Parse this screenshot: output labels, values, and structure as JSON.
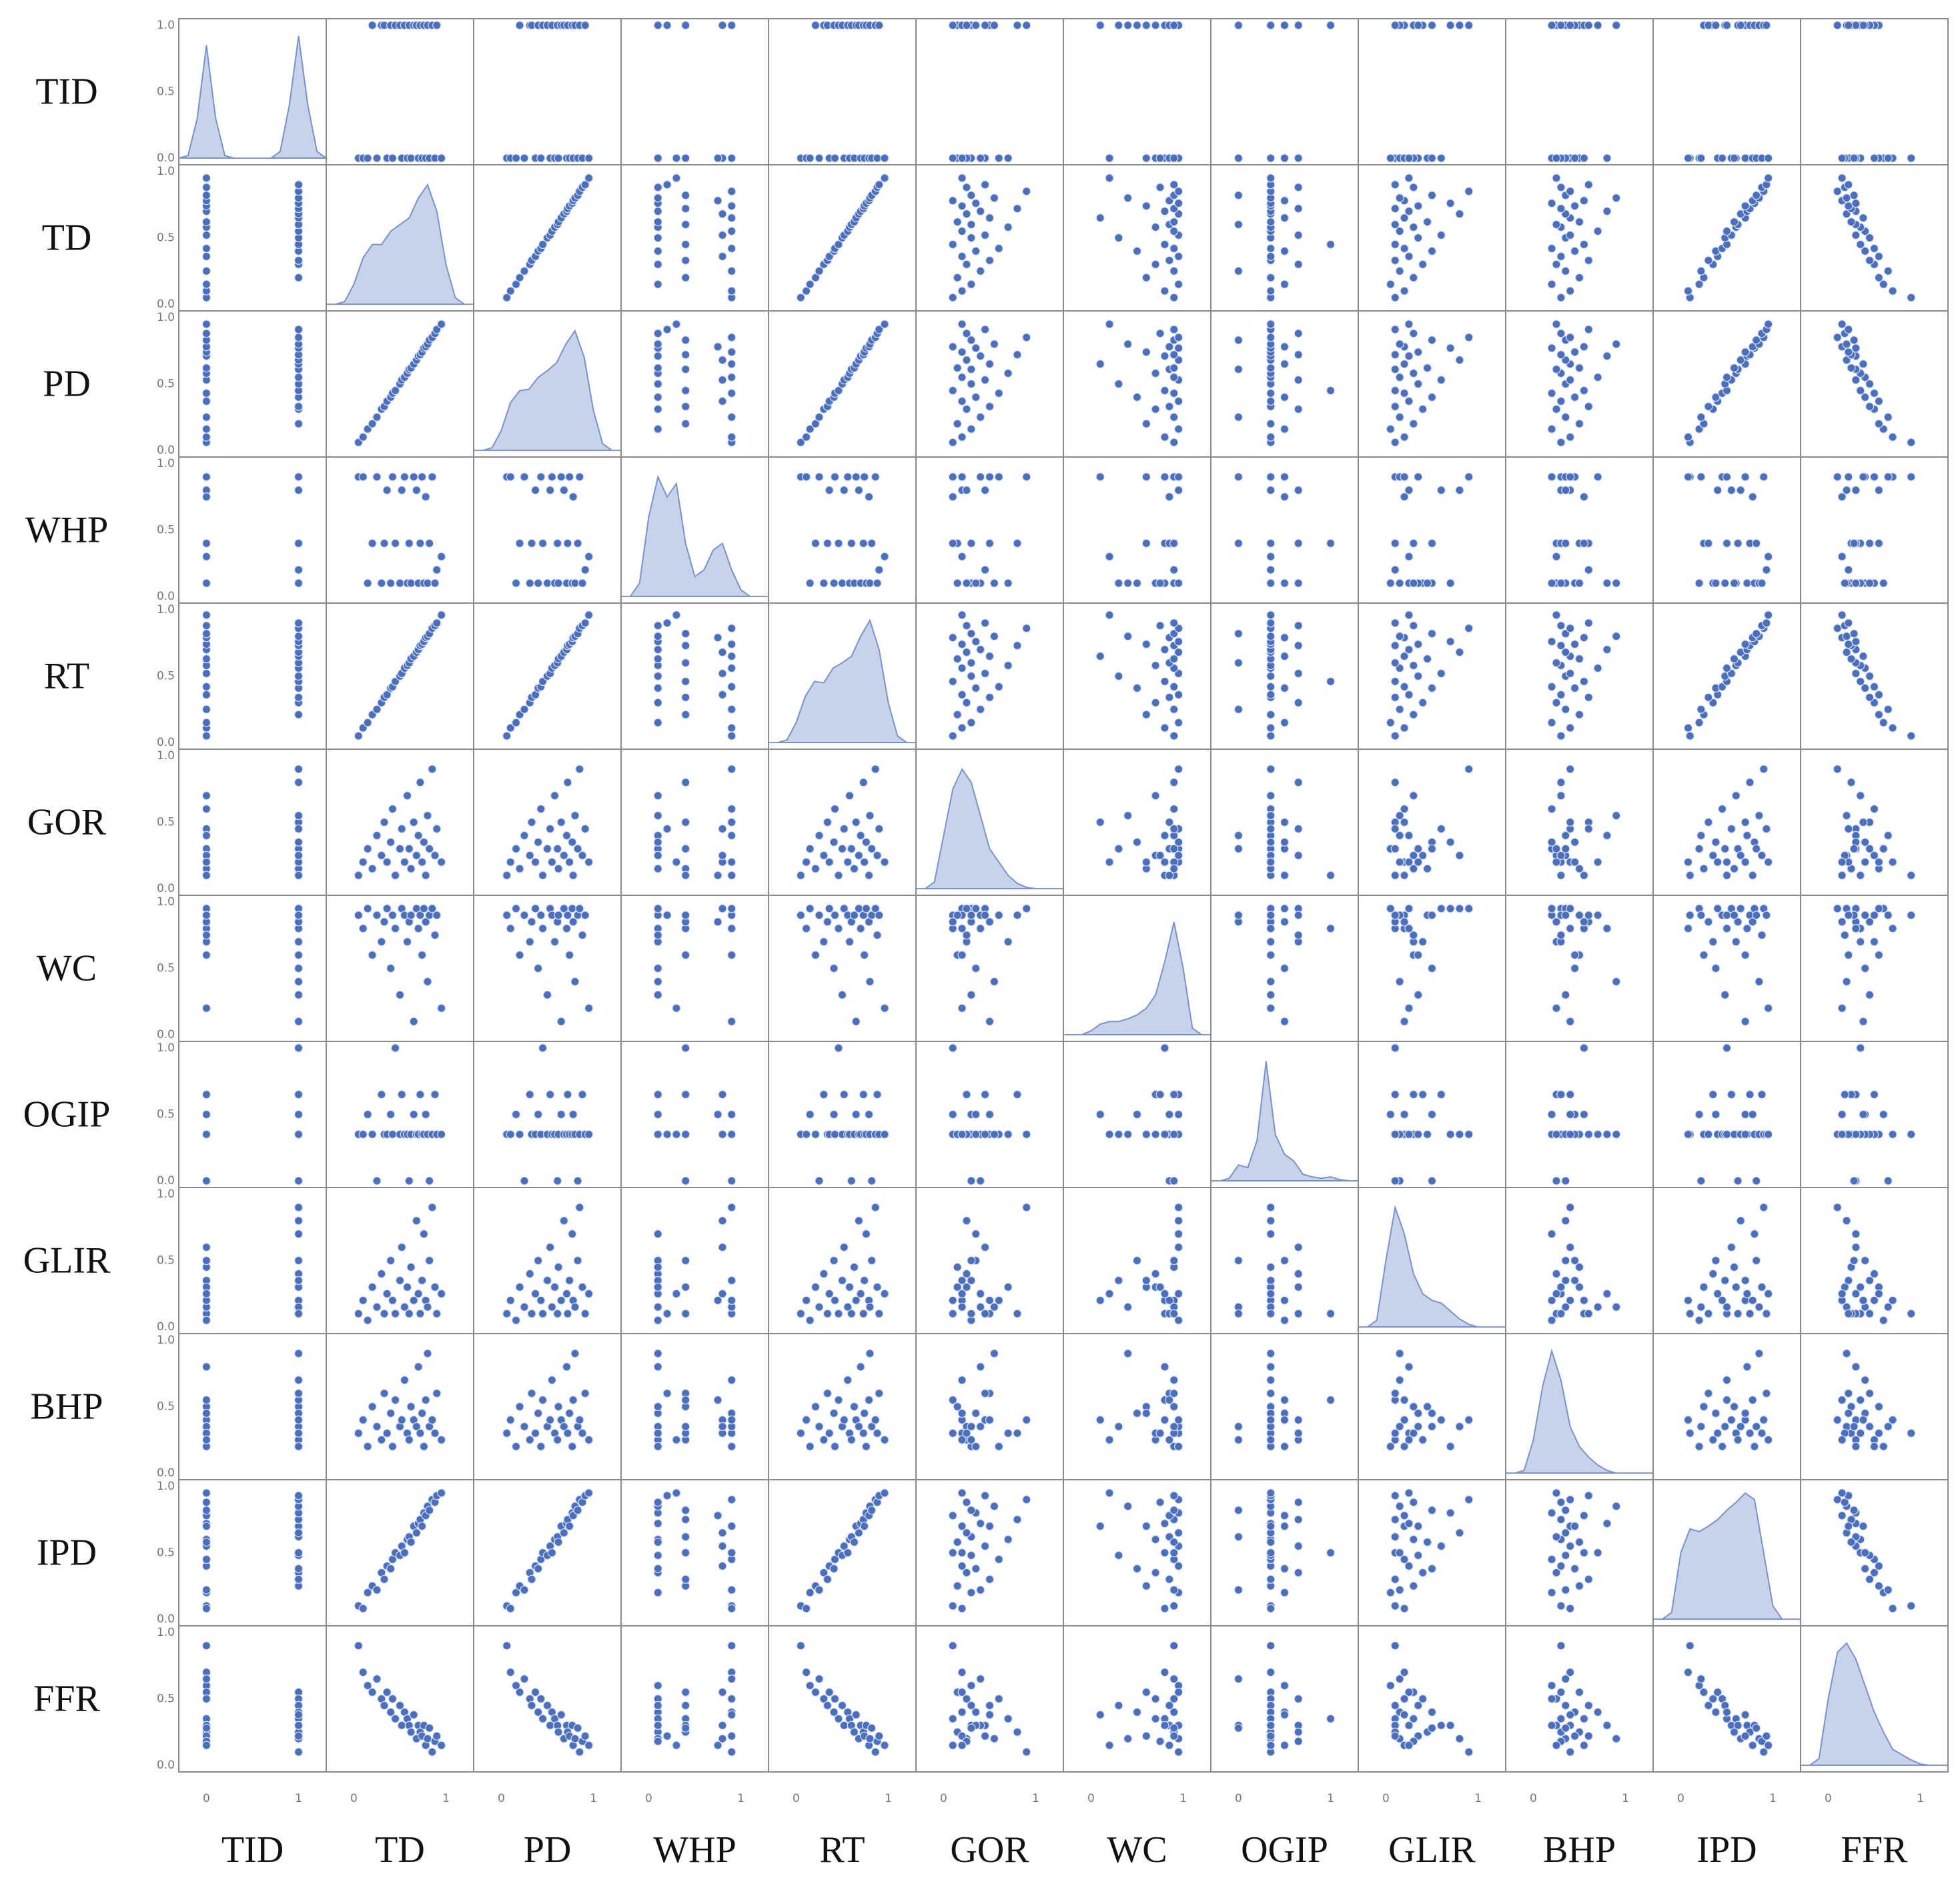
{
  "chart_data": {
    "type": "pairplot",
    "color": "#4a6fbf",
    "density_color": "#c8d2e8",
    "xlim": [
      -0.3,
      1.3
    ],
    "ylim": [
      -0.05,
      1.05
    ],
    "xticks": [
      0,
      1
    ],
    "yticks": [
      {
        "value": 0,
        "label": "0.0"
      },
      {
        "value": 0.5,
        "label": "0.5"
      },
      {
        "value": 1,
        "label": "1.0"
      }
    ],
    "density_x": [
      -0.3,
      -0.2,
      -0.1,
      0,
      0.1,
      0.2,
      0.3,
      0.4,
      0.5,
      0.6,
      0.7,
      0.8,
      0.9,
      1.0,
      1.1,
      1.2,
      1.3
    ],
    "variables": [
      {
        "name": "TID",
        "values": [
          0,
          0,
          0,
          1,
          0,
          1,
          1,
          0,
          1,
          0,
          1,
          1,
          0,
          1,
          0,
          1,
          0,
          1,
          1,
          0,
          1,
          0,
          1,
          0,
          1,
          0,
          1,
          0,
          1,
          0
        ],
        "density": [
          0,
          0.02,
          0.3,
          0.85,
          0.3,
          0.02,
          0,
          0,
          0,
          0,
          0,
          0.05,
          0.4,
          0.92,
          0.4,
          0.05,
          0
        ]
      },
      {
        "name": "TD",
        "values": [
          0.05,
          0.1,
          0.15,
          0.2,
          0.25,
          0.3,
          0.33,
          0.36,
          0.4,
          0.42,
          0.45,
          0.5,
          0.52,
          0.55,
          0.58,
          0.6,
          0.62,
          0.65,
          0.68,
          0.7,
          0.72,
          0.74,
          0.76,
          0.78,
          0.8,
          0.82,
          0.85,
          0.88,
          0.9,
          0.95
        ],
        "density": [
          0,
          0,
          0.02,
          0.15,
          0.35,
          0.45,
          0.45,
          0.55,
          0.6,
          0.65,
          0.8,
          0.9,
          0.7,
          0.3,
          0.05,
          0,
          0
        ]
      },
      {
        "name": "PD",
        "values": [
          0.06,
          0.1,
          0.16,
          0.2,
          0.25,
          0.31,
          0.33,
          0.37,
          0.4,
          0.43,
          0.45,
          0.5,
          0.53,
          0.55,
          0.58,
          0.61,
          0.62,
          0.65,
          0.68,
          0.71,
          0.72,
          0.74,
          0.77,
          0.78,
          0.8,
          0.83,
          0.85,
          0.88,
          0.91,
          0.95
        ],
        "density": [
          0,
          0,
          0.02,
          0.15,
          0.36,
          0.45,
          0.46,
          0.55,
          0.6,
          0.66,
          0.8,
          0.9,
          0.7,
          0.3,
          0.05,
          0,
          0
        ]
      },
      {
        "name": "WHP",
        "values": [
          0.9,
          0.9,
          0.1,
          0.4,
          0.9,
          0.1,
          0.4,
          0.8,
          0.1,
          0.9,
          0.4,
          0.1,
          0.8,
          0.9,
          0.1,
          0.4,
          0.1,
          0.9,
          0.8,
          0.1,
          0.4,
          0.9,
          0.1,
          0.75,
          0.1,
          0.4,
          0.9,
          0.1,
          0.2,
          0.3
        ],
        "density": [
          0,
          0,
          0.1,
          0.6,
          0.9,
          0.75,
          0.85,
          0.4,
          0.15,
          0.2,
          0.35,
          0.4,
          0.2,
          0.05,
          0,
          0,
          0
        ]
      },
      {
        "name": "RT",
        "values": [
          0.05,
          0.11,
          0.15,
          0.21,
          0.25,
          0.3,
          0.34,
          0.36,
          0.41,
          0.42,
          0.46,
          0.5,
          0.52,
          0.56,
          0.58,
          0.6,
          0.63,
          0.65,
          0.68,
          0.7,
          0.73,
          0.74,
          0.76,
          0.79,
          0.8,
          0.82,
          0.86,
          0.88,
          0.9,
          0.96
        ],
        "density": [
          0,
          0,
          0.02,
          0.15,
          0.35,
          0.46,
          0.45,
          0.56,
          0.6,
          0.65,
          0.8,
          0.92,
          0.7,
          0.3,
          0.05,
          0,
          0
        ]
      },
      {
        "name": "GOR",
        "values": [
          0.1,
          0.2,
          0.3,
          0.15,
          0.4,
          0.25,
          0.5,
          0.2,
          0.35,
          0.6,
          0.1,
          0.3,
          0.45,
          0.2,
          0.7,
          0.3,
          0.15,
          0.5,
          0.25,
          0.4,
          0.8,
          0.2,
          0.35,
          0.1,
          0.55,
          0.3,
          0.9,
          0.25,
          0.45,
          0.2
        ],
        "density": [
          0,
          0,
          0.05,
          0.4,
          0.75,
          0.9,
          0.8,
          0.55,
          0.3,
          0.2,
          0.1,
          0.04,
          0.01,
          0,
          0,
          0,
          0
        ]
      },
      {
        "name": "WC",
        "values": [
          0.9,
          0.8,
          0.95,
          0.6,
          0.9,
          0.7,
          0.85,
          0.95,
          0.5,
          0.9,
          0.8,
          0.3,
          0.95,
          0.9,
          0.7,
          0.85,
          0.9,
          0.1,
          0.95,
          0.8,
          0.9,
          0.6,
          0.95,
          0.85,
          0.4,
          0.9,
          0.95,
          0.75,
          0.9,
          0.2
        ],
        "density": [
          0,
          0,
          0,
          0.03,
          0.08,
          0.1,
          0.1,
          0.12,
          0.15,
          0.2,
          0.3,
          0.55,
          0.85,
          0.5,
          0.05,
          0,
          0
        ]
      },
      {
        "name": "OGIP",
        "values": [
          0.35,
          0.35,
          0.5,
          0.35,
          0,
          0.65,
          0.35,
          0.35,
          0.5,
          0.35,
          1,
          0.35,
          0.65,
          0.35,
          0.35,
          0,
          0.35,
          0.5,
          0.35,
          0.35,
          0.65,
          0.35,
          0.35,
          0.5,
          0.35,
          0,
          0.35,
          0.65,
          0.35,
          0.35
        ],
        "density": [
          0,
          0,
          0.02,
          0.12,
          0.1,
          0.3,
          0.9,
          0.35,
          0.2,
          0.15,
          0.05,
          0.03,
          0.02,
          0.03,
          0.01,
          0,
          0
        ]
      },
      {
        "name": "GLIR",
        "values": [
          0.1,
          0.2,
          0.05,
          0.3,
          0.15,
          0.4,
          0.1,
          0.25,
          0.5,
          0.2,
          0.1,
          0.35,
          0.6,
          0.15,
          0.3,
          0.1,
          0.45,
          0.2,
          0.8,
          0.25,
          0.1,
          0.35,
          0.7,
          0.2,
          0.15,
          0.5,
          0.9,
          0.3,
          0.1,
          0.25
        ],
        "density": [
          0,
          0,
          0.05,
          0.5,
          0.9,
          0.7,
          0.4,
          0.25,
          0.2,
          0.18,
          0.12,
          0.06,
          0.02,
          0,
          0,
          0,
          0
        ]
      },
      {
        "name": "BHP",
        "values": [
          0.3,
          0.4,
          0.2,
          0.5,
          0.35,
          0.25,
          0.6,
          0.3,
          0.45,
          0.2,
          0.55,
          0.35,
          0.4,
          0.7,
          0.3,
          0.25,
          0.5,
          0.4,
          0.35,
          0.8,
          0.3,
          0.45,
          0.2,
          0.55,
          0.9,
          0.35,
          0.4,
          0.3,
          0.6,
          0.25
        ],
        "density": [
          0,
          0,
          0.02,
          0.25,
          0.65,
          0.92,
          0.7,
          0.35,
          0.2,
          0.12,
          0.06,
          0.02,
          0,
          0,
          0,
          0,
          0
        ]
      },
      {
        "name": "IPD",
        "values": [
          0.1,
          0.08,
          0.2,
          0.25,
          0.22,
          0.35,
          0.3,
          0.4,
          0.38,
          0.45,
          0.5,
          0.48,
          0.55,
          0.5,
          0.6,
          0.62,
          0.58,
          0.7,
          0.65,
          0.72,
          0.75,
          0.7,
          0.8,
          0.78,
          0.85,
          0.82,
          0.9,
          0.88,
          0.93,
          0.95
        ],
        "density": [
          0,
          0,
          0.05,
          0.5,
          0.68,
          0.66,
          0.7,
          0.75,
          0.82,
          0.88,
          0.95,
          0.9,
          0.5,
          0.1,
          0,
          0,
          0
        ]
      },
      {
        "name": "FFR",
        "values": [
          0.9,
          0.7,
          0.6,
          0.55,
          0.65,
          0.5,
          0.45,
          0.55,
          0.4,
          0.5,
          0.35,
          0.45,
          0.3,
          0.4,
          0.35,
          0.3,
          0.25,
          0.38,
          0.2,
          0.3,
          0.25,
          0.22,
          0.3,
          0.15,
          0.2,
          0.28,
          0.1,
          0.18,
          0.22,
          0.15
        ],
        "density": [
          0,
          0,
          0.05,
          0.5,
          0.85,
          0.92,
          0.8,
          0.6,
          0.4,
          0.25,
          0.12,
          0.08,
          0.04,
          0.01,
          0,
          0,
          0
        ]
      }
    ]
  }
}
